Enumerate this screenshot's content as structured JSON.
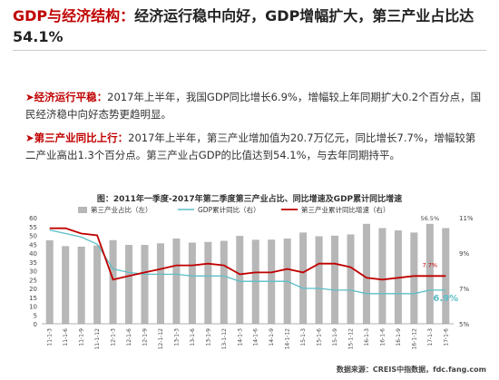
{
  "header": {
    "title_accent": "GDP与经济结构：",
    "title_rest": "经济运行稳中向好，GDP增幅扩大，第三产业占比达54.1%"
  },
  "paragraphs": {
    "p1": {
      "arrow": "➤",
      "lead": "经济运行平稳：",
      "body": "2017年上半年，我国GDP同比增长6.9%，增幅较上年同期扩大0.2个百分点，国民经济稳中向好态势更趋明显。"
    },
    "p2": {
      "arrow": "➤",
      "lead": "第三产业同比上行：",
      "body": "2017年上半年，第三产业增加值为20.7万亿元，同比增长7.7%，增幅较第二产业高出1.3个百分点。第三产业占GDP的比值达到54.1%，与去年同期持平。"
    },
    "chart_title": "图：2011年一季度-2017年第二季度第三产业占比、同比增速及GDP累计同比增速",
    "source": "数据来源：CREIS中指数据，fdc.fang.com"
  },
  "chart_data": {
    "type": "bar",
    "categories": [
      "11-1-3",
      "11-1-6",
      "11-1-9",
      "11-1-12",
      "12-1-3",
      "12-1-6",
      "12-1-9",
      "12-1-12",
      "13-1-3",
      "13-1-6",
      "13-1-9",
      "13-1-12",
      "14-1-3",
      "14-1-6",
      "14-1-9",
      "14-1-12",
      "15-1-3",
      "15-1-6",
      "15-1-9",
      "15-1-12",
      "16-1-3",
      "16-1-6",
      "16-1-9",
      "16-1-12",
      "17-1-3",
      "17-1-6"
    ],
    "colors": {
      "bar": "#b7b7b7",
      "gdp": "#5bbfc6",
      "tertiary": "#c00000"
    },
    "series": [
      {
        "name": "第三产业占比（左）",
        "type": "bar",
        "axis": "left",
        "values": [
          47.2,
          43.9,
          43.6,
          44.3,
          47.3,
          44.6,
          44.6,
          45.5,
          48.2,
          45.9,
          46.3,
          46.9,
          49.7,
          47.5,
          47.6,
          48.2,
          51.6,
          49.5,
          49.8,
          50.5,
          56.5,
          54.1,
          52.8,
          51.6,
          56.5,
          54.1
        ]
      },
      {
        "name": "GDP累计同比（右）",
        "type": "line",
        "axis": "right",
        "values": [
          10.3,
          10.1,
          9.9,
          9.5,
          8.1,
          7.9,
          7.8,
          7.8,
          7.8,
          7.7,
          7.7,
          7.7,
          7.4,
          7.4,
          7.4,
          7.4,
          7.0,
          7.0,
          6.9,
          6.9,
          6.7,
          6.7,
          6.7,
          6.7,
          6.9,
          6.9
        ]
      },
      {
        "name": "第三产业累计同比增速（右）",
        "type": "line",
        "axis": "right",
        "values": [
          10.4,
          10.4,
          10.1,
          10.0,
          7.5,
          7.7,
          7.9,
          8.1,
          8.3,
          8.3,
          8.4,
          8.3,
          7.8,
          7.9,
          7.9,
          8.1,
          7.9,
          8.4,
          8.4,
          8.2,
          7.6,
          7.5,
          7.6,
          7.7,
          7.7,
          7.7
        ]
      }
    ],
    "ylim_left": [
      0,
      60
    ],
    "ylim_right": [
      5,
      11
    ],
    "yticks_left": [
      "0",
      "5",
      "10",
      "15",
      "20",
      "25",
      "30",
      "35",
      "40",
      "45",
      "50",
      "55",
      "60"
    ],
    "yticks_right": [
      "5%",
      "7%",
      "9%",
      "11%"
    ],
    "annotations": [
      {
        "text": "56.5%",
        "series": 0,
        "index": 24
      },
      {
        "text": "7.7%",
        "series": 2,
        "index": 24
      },
      {
        "text": "6.9%",
        "series": 1,
        "index": 25
      }
    ]
  }
}
